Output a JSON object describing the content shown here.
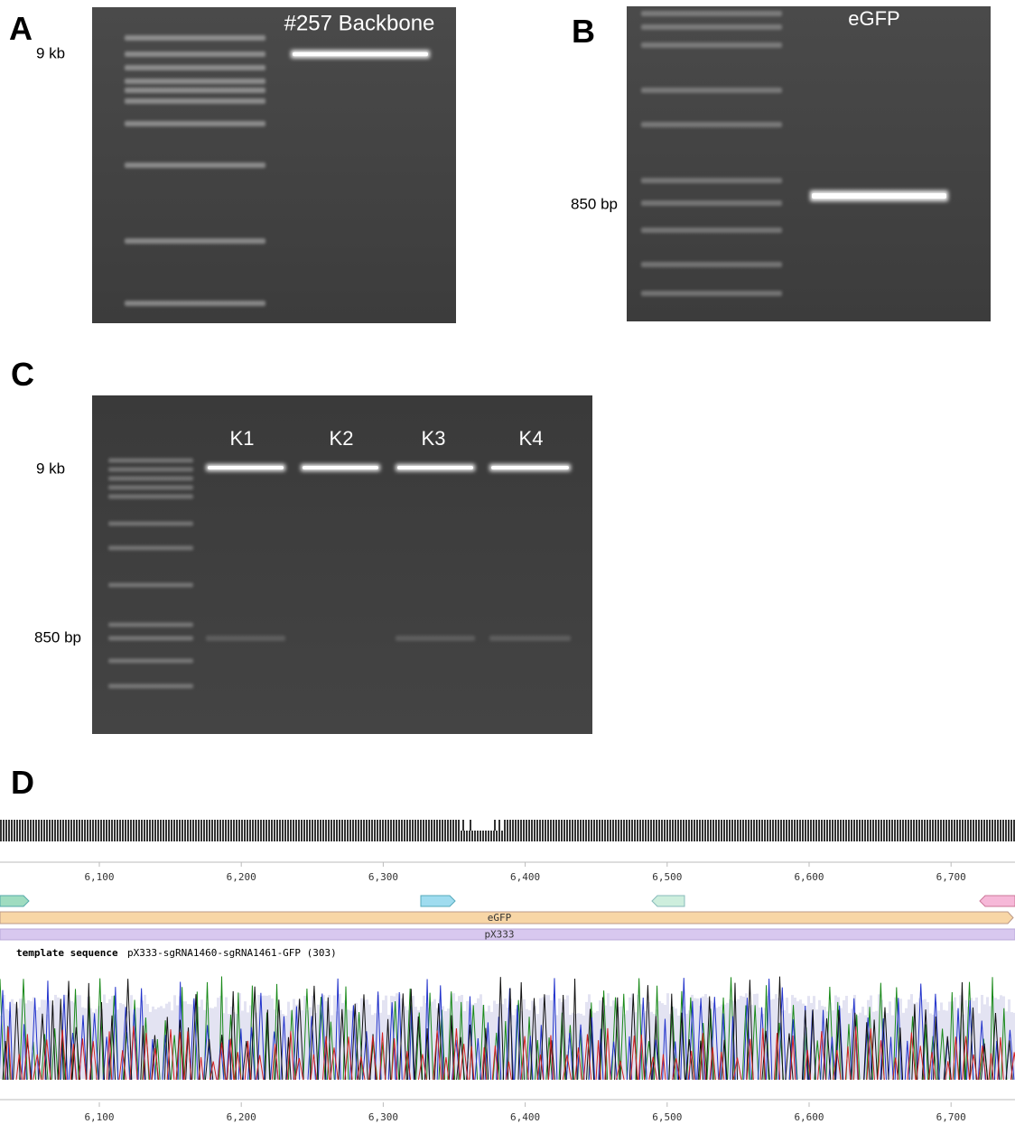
{
  "panel_a": {
    "label": "A",
    "marker": "9 kb",
    "lane_label": "#257 Backbone"
  },
  "panel_b": {
    "label": "B",
    "lane_label": "eGFP",
    "marker": "850 bp"
  },
  "panel_c": {
    "label": "C",
    "lanes": [
      "K1",
      "K2",
      "K3",
      "K4"
    ],
    "markers": [
      "9 kb",
      "850 bp"
    ]
  },
  "panel_d": {
    "label": "D",
    "ruler": [
      "6,100",
      "6,200",
      "6,300",
      "6,400",
      "6,500",
      "6,600",
      "6,700"
    ],
    "features": [
      "eGFP",
      "pX333"
    ],
    "track_title": "template sequence",
    "track_name": "pX333-sgRNA1460-sgRNA1461-GFP (303)"
  }
}
